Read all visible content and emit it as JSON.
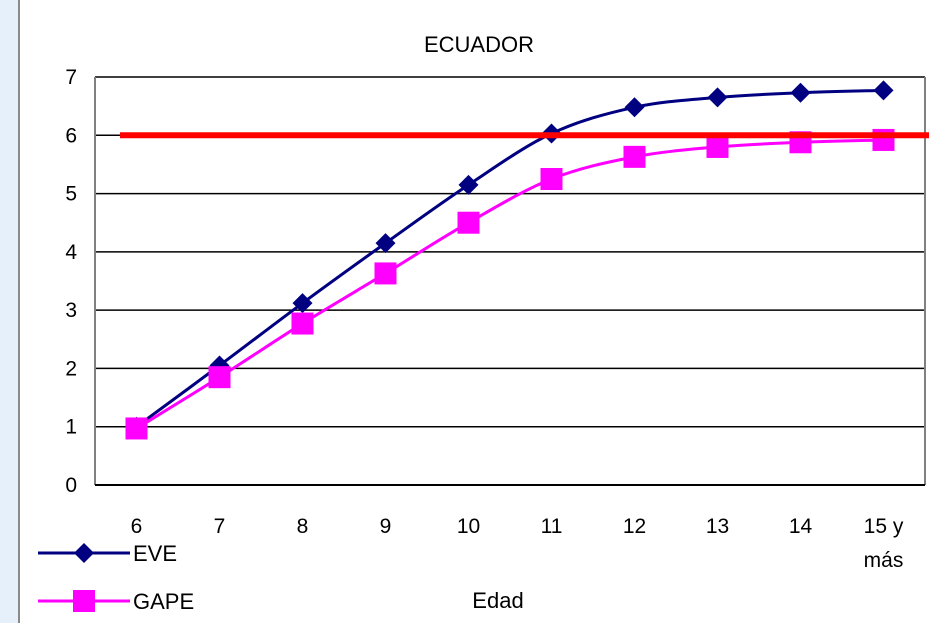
{
  "chart_data": {
    "type": "line",
    "title": "ECUADOR",
    "xlabel": "Edad",
    "ylabel": "",
    "categories": [
      "6",
      "7",
      "8",
      "9",
      "10",
      "11",
      "12",
      "13",
      "14",
      "15 y más"
    ],
    "ylim": [
      0,
      7
    ],
    "yticks": [
      "0",
      "1",
      "2",
      "3",
      "4",
      "5",
      "6",
      "7"
    ],
    "grid": true,
    "legend": "bottom-left",
    "series": [
      {
        "name": "EVE",
        "color": "#000080",
        "marker": "diamond",
        "values": [
          1.0,
          2.05,
          3.12,
          4.15,
          5.15,
          6.03,
          6.48,
          6.65,
          6.73,
          6.77
        ]
      },
      {
        "name": "GAPE",
        "color": "#ff00ff",
        "marker": "square",
        "values": [
          0.97,
          1.85,
          2.77,
          3.63,
          4.5,
          5.25,
          5.63,
          5.8,
          5.88,
          5.92
        ]
      }
    ],
    "reference_line": {
      "value": 6,
      "color": "#ff0000"
    }
  }
}
